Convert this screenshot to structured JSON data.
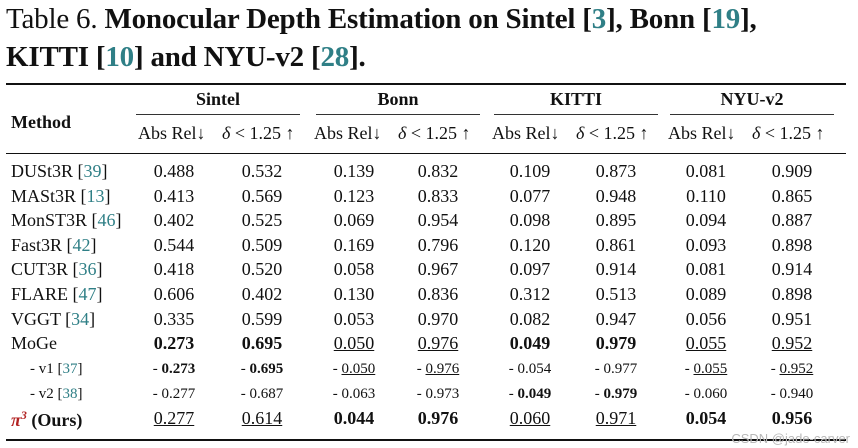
{
  "caption": {
    "prefix": "Table 6. ",
    "line1_bold_a": "Monocular Depth Estimation on Sintel [",
    "cite_a": "3",
    "line1_bold_b": "], Bonn [",
    "cite_b": "19",
    "line1_bold_c": "],",
    "line2_bold_a": "KITTI [",
    "cite_c": "10",
    "line2_bold_b": "] and NYU-v2 [",
    "cite_d": "28",
    "line2_bold_c": "]."
  },
  "header": {
    "method": "Method",
    "datasets": [
      "Sintel",
      "Bonn",
      "KITTI",
      "NYU-v2"
    ],
    "metric_abs": "Abs Rel↓",
    "metric_delta_sym": "δ",
    "metric_delta_rest": " < 1.25 ↑"
  },
  "rows": [
    {
      "label": "DUSt3R [",
      "cite": "39",
      "close": "]",
      "vals": [
        "0.488",
        "0.532",
        "0.139",
        "0.832",
        "0.109",
        "0.873",
        "0.081",
        "0.909"
      ],
      "sub": false,
      "fmt": [
        "",
        "",
        "",
        "",
        "",
        "",
        "",
        ""
      ],
      "prefix": [
        "",
        "",
        "",
        "",
        "",
        "",
        "",
        ""
      ]
    },
    {
      "label": "MASt3R [",
      "cite": "13",
      "close": "]",
      "vals": [
        "0.413",
        "0.569",
        "0.123",
        "0.833",
        "0.077",
        "0.948",
        "0.110",
        "0.865"
      ],
      "sub": false,
      "fmt": [
        "",
        "",
        "",
        "",
        "",
        "",
        "",
        ""
      ],
      "prefix": [
        "",
        "",
        "",
        "",
        "",
        "",
        "",
        ""
      ]
    },
    {
      "label": "MonST3R [",
      "cite": "46",
      "close": "]",
      "vals": [
        "0.402",
        "0.525",
        "0.069",
        "0.954",
        "0.098",
        "0.895",
        "0.094",
        "0.887"
      ],
      "sub": false,
      "fmt": [
        "",
        "",
        "",
        "",
        "",
        "",
        "",
        ""
      ],
      "prefix": [
        "",
        "",
        "",
        "",
        "",
        "",
        "",
        ""
      ]
    },
    {
      "label": "Fast3R [",
      "cite": "42",
      "close": "]",
      "vals": [
        "0.544",
        "0.509",
        "0.169",
        "0.796",
        "0.120",
        "0.861",
        "0.093",
        "0.898"
      ],
      "sub": false,
      "fmt": [
        "",
        "",
        "",
        "",
        "",
        "",
        "",
        ""
      ],
      "prefix": [
        "",
        "",
        "",
        "",
        "",
        "",
        "",
        ""
      ]
    },
    {
      "label": "CUT3R [",
      "cite": "36",
      "close": "]",
      "vals": [
        "0.418",
        "0.520",
        "0.058",
        "0.967",
        "0.097",
        "0.914",
        "0.081",
        "0.914"
      ],
      "sub": false,
      "fmt": [
        "",
        "",
        "",
        "",
        "",
        "",
        "",
        ""
      ],
      "prefix": [
        "",
        "",
        "",
        "",
        "",
        "",
        "",
        ""
      ]
    },
    {
      "label": "FLARE [",
      "cite": "47",
      "close": "]",
      "vals": [
        "0.606",
        "0.402",
        "0.130",
        "0.836",
        "0.312",
        "0.513",
        "0.089",
        "0.898"
      ],
      "sub": false,
      "fmt": [
        "",
        "",
        "",
        "",
        "",
        "",
        "",
        ""
      ],
      "prefix": [
        "",
        "",
        "",
        "",
        "",
        "",
        "",
        ""
      ]
    },
    {
      "label": "VGGT [",
      "cite": "34",
      "close": "]",
      "vals": [
        "0.335",
        "0.599",
        "0.053",
        "0.970",
        "0.082",
        "0.947",
        "0.056",
        "0.951"
      ],
      "sub": false,
      "fmt": [
        "",
        "",
        "",
        "",
        "",
        "",
        "",
        ""
      ],
      "prefix": [
        "",
        "",
        "",
        "",
        "",
        "",
        "",
        ""
      ]
    },
    {
      "label": "MoGe",
      "cite": "",
      "close": "",
      "vals": [
        "0.273",
        "0.695",
        "0.050",
        "0.976",
        "0.049",
        "0.979",
        "0.055",
        "0.952"
      ],
      "sub": false,
      "fmt": [
        "b",
        "b",
        "u",
        "u",
        "b",
        "b",
        "u",
        "u"
      ],
      "prefix": [
        "",
        "",
        "",
        "",
        "",
        "",
        "",
        ""
      ]
    },
    {
      "label": "- v1 [",
      "cite": "37",
      "close": "]",
      "vals": [
        "0.273",
        "0.695",
        "0.050",
        "0.976",
        "0.054",
        "0.977",
        "0.055",
        "0.952"
      ],
      "sub": true,
      "fmt": [
        "b",
        "b",
        "u",
        "u",
        "",
        "",
        "u",
        "u"
      ],
      "prefix": [
        "- ",
        "- ",
        "- ",
        "- ",
        "- ",
        "- ",
        "- ",
        "- "
      ]
    },
    {
      "label": "- v2 [",
      "cite": "38",
      "close": "]",
      "vals": [
        "0.277",
        "0.687",
        "0.063",
        "0.973",
        "0.049",
        "0.979",
        "0.060",
        "0.940"
      ],
      "sub": true,
      "fmt": [
        "",
        "",
        "",
        "",
        "b",
        "b",
        "",
        ""
      ],
      "prefix": [
        "- ",
        "- ",
        "- ",
        "- ",
        "- ",
        "- ",
        "- ",
        "- "
      ]
    },
    {
      "label": " (Ours)",
      "cite": "",
      "close": "",
      "pi": "π",
      "pisup": "3",
      "vals": [
        "0.277",
        "0.614",
        "0.044",
        "0.976",
        "0.060",
        "0.971",
        "0.054",
        "0.956"
      ],
      "sub": false,
      "fmt": [
        "u",
        "u",
        "b",
        "b",
        "u",
        "u",
        "b",
        "b"
      ],
      "prefix": [
        "",
        "",
        "",
        "",
        "",
        "",
        "",
        ""
      ]
    }
  ],
  "watermark": "CSDN @jade-carver"
}
